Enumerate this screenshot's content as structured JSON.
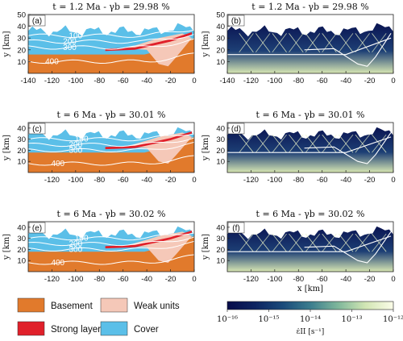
{
  "panels": [
    {
      "letter": "(a)",
      "title": "t = 1.2 Ma - γb = 29.98 %",
      "kind": "material",
      "xlim": [
        -140,
        0
      ],
      "ylim": [
        0,
        50
      ],
      "xticks": [
        -140,
        -120,
        -100,
        -80,
        -60,
        -40,
        -20,
        0
      ],
      "yticks": [
        10,
        20,
        30,
        40,
        50
      ],
      "contours": [
        "100",
        "200",
        "300",
        "400"
      ]
    },
    {
      "letter": "(b)",
      "title": "t = 1.2 Ma - γb = 29.98 %",
      "kind": "strain",
      "xlim": [
        -140,
        0
      ],
      "ylim": [
        0,
        50
      ],
      "xticks": [
        -140,
        -120,
        -100,
        -80,
        -60,
        -40,
        -20,
        0
      ],
      "yticks": [
        10,
        20,
        30,
        40,
        50
      ]
    },
    {
      "letter": "(c)",
      "title": "t = 6 Ma - γb = 30.01 %",
      "kind": "material",
      "xlim": [
        -140,
        0
      ],
      "ylim": [
        0,
        45
      ],
      "xticks": [
        -120,
        -100,
        -80,
        -60,
        -40,
        -20,
        0
      ],
      "yticks": [
        10,
        20,
        30,
        40
      ],
      "contours": [
        "100",
        "200",
        "300",
        "400"
      ]
    },
    {
      "letter": "(d)",
      "title": "t = 6 Ma - γb = 30.01 %",
      "kind": "strain",
      "xlim": [
        -140,
        0
      ],
      "ylim": [
        0,
        45
      ],
      "xticks": [
        -120,
        -100,
        -80,
        -60,
        -40,
        -20,
        0
      ],
      "yticks": [
        10,
        20,
        30,
        40
      ]
    },
    {
      "letter": "(e)",
      "title": "t = 6 Ma - γb = 30.02 %",
      "kind": "material",
      "xlim": [
        -140,
        0
      ],
      "ylim": [
        0,
        45
      ],
      "xticks": [
        -120,
        -100,
        -80,
        -60,
        -40,
        -20,
        0
      ],
      "yticks": [
        10,
        20,
        30,
        40
      ],
      "contours": [
        "100",
        "200",
        "300",
        "400"
      ]
    },
    {
      "letter": "(f)",
      "title": "t = 6 Ma - γb = 30.02 %",
      "kind": "strain",
      "xlim": [
        -140,
        0
      ],
      "ylim": [
        0,
        45
      ],
      "xticks": [
        -120,
        -100,
        -80,
        -60,
        -40,
        -20,
        0
      ],
      "yticks": [
        10,
        20,
        30,
        40
      ]
    }
  ],
  "ylabel": "y [km]",
  "xlabel": "x [km]",
  "legend": [
    {
      "label": "Basement",
      "color": "#e17a2c"
    },
    {
      "label": "Weak units",
      "color": "#f5c8b8"
    },
    {
      "label": "Strong layer",
      "color": "#e0202a"
    },
    {
      "label": "Cover",
      "color": "#5bbfe8"
    }
  ],
  "colorbar": {
    "ticks": [
      "10⁻¹⁶",
      "10⁻¹⁵",
      "10⁻¹⁴",
      "10⁻¹³",
      "10⁻¹²"
    ],
    "label": "ε̇II [s⁻¹]",
    "colors": [
      "#070c4a",
      "#0d2460",
      "#1a4a7a",
      "#3b7d8e",
      "#7fb79b",
      "#d2e6b4",
      "#fbfce8"
    ]
  },
  "colors": {
    "basement": "#e17a2c",
    "weak": "#f5c8b8",
    "strong": "#e0202a",
    "cover": "#5bbfe8",
    "dark": "#0a1452"
  }
}
